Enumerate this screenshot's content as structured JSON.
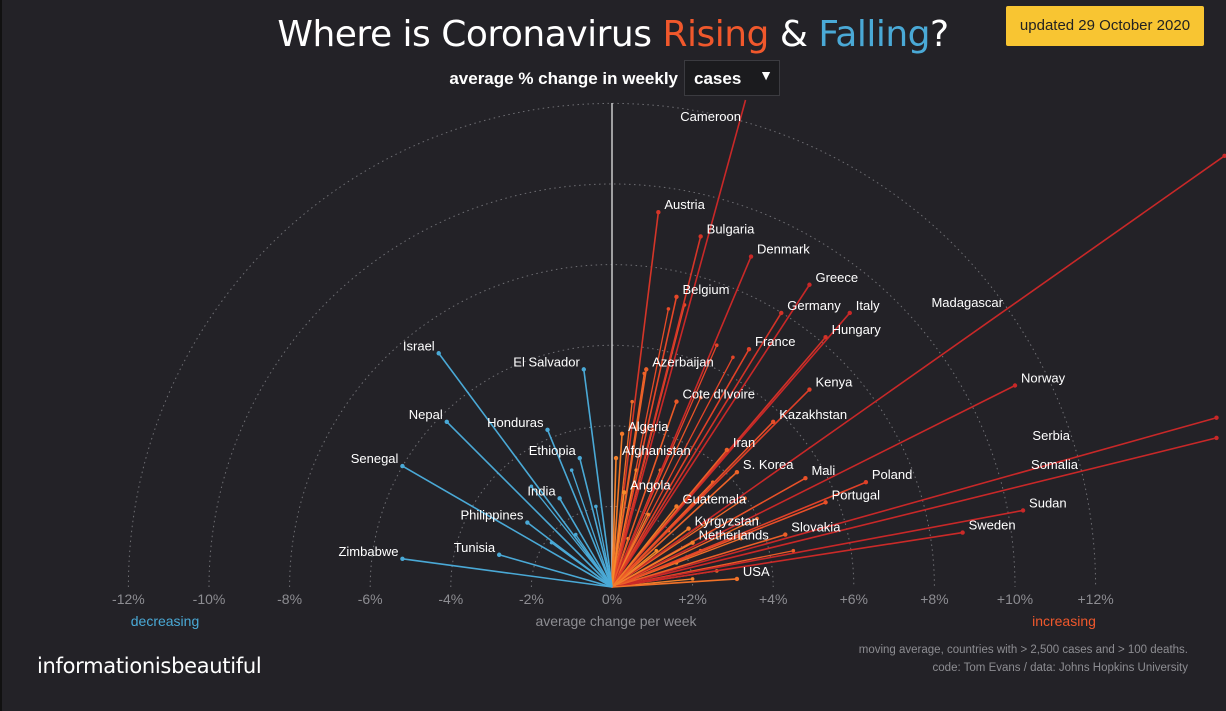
{
  "header": {
    "title_before": "Where is Coronavirus ",
    "title_rising": "Rising",
    "title_amp": " & ",
    "title_falling": "Falling",
    "title_end": "?",
    "updated": "updated 29 October 2020",
    "subtitle": "average % change in weekly",
    "metric_value": "cases",
    "metric_arrow": "▼"
  },
  "colors": {
    "background": "#232227",
    "rising": "#f0582c",
    "falling": "#4aa9d6",
    "badge": "#f8c532",
    "grid": "#6f6f74"
  },
  "chart_data": {
    "type": "radial-line",
    "x_label": "average change per week",
    "x_ticks": [
      "-12%",
      "-10%",
      "-8%",
      "-6%",
      "-4%",
      "-2%",
      "0%",
      "+2%",
      "+4%",
      "+6%",
      "+8%",
      "+10%",
      "+12%"
    ],
    "x_range": [
      -12,
      12
    ],
    "left_note": "decreasing",
    "right_note": "increasing",
    "grid": "dotted concentric semicircles every 2%",
    "points": [
      {
        "name": "Cameroon",
        "x": 3.4,
        "y": 12.4
      },
      {
        "name": "Austria",
        "x": 1.15,
        "y": 9.3
      },
      {
        "name": "Bulgaria",
        "x": 2.2,
        "y": 8.7
      },
      {
        "name": "Denmark",
        "x": 3.45,
        "y": 8.2
      },
      {
        "name": "Greece",
        "x": 4.9,
        "y": 7.5
      },
      {
        "name": "Germany",
        "x": 4.2,
        "y": 6.8
      },
      {
        "name": "Italy",
        "x": 5.9,
        "y": 6.8
      },
      {
        "name": "Belgium",
        "x": 1.6,
        "y": 7.2
      },
      {
        "name": "Hungary",
        "x": 5.3,
        "y": 6.2
      },
      {
        "name": "France",
        "x": 3.4,
        "y": 5.9
      },
      {
        "name": "Madagascar",
        "x": 15.2,
        "y": 10.7
      },
      {
        "name": "Azerbaijan",
        "x": 0.85,
        "y": 5.4
      },
      {
        "name": "Cote d'Ivoire",
        "x": 1.6,
        "y": 4.6
      },
      {
        "name": "Kenya",
        "x": 4.9,
        "y": 4.9
      },
      {
        "name": "Norway",
        "x": 10.0,
        "y": 5.0
      },
      {
        "name": "Kazakhstan",
        "x": 4.0,
        "y": 4.1
      },
      {
        "name": "Algeria",
        "x": 0.25,
        "y": 3.8
      },
      {
        "name": "Afghanistan",
        "x": 0.1,
        "y": 3.2
      },
      {
        "name": "Iran",
        "x": 2.85,
        "y": 3.4
      },
      {
        "name": "Serbia",
        "x": 15.0,
        "y": 4.2
      },
      {
        "name": "S. Korea",
        "x": 3.1,
        "y": 2.85
      },
      {
        "name": "Somalia",
        "x": 15.0,
        "y": 3.7
      },
      {
        "name": "Mali",
        "x": 4.8,
        "y": 2.7
      },
      {
        "name": "Poland",
        "x": 6.3,
        "y": 2.6
      },
      {
        "name": "Angola",
        "x": 0.3,
        "y": 2.35
      },
      {
        "name": "Guatemala",
        "x": 1.6,
        "y": 2.0
      },
      {
        "name": "Portugal",
        "x": 5.3,
        "y": 2.1
      },
      {
        "name": "Sudan",
        "x": 10.2,
        "y": 1.9
      },
      {
        "name": "Kyrgyzstan",
        "x": 1.9,
        "y": 1.45
      },
      {
        "name": "Slovakia",
        "x": 4.3,
        "y": 1.3
      },
      {
        "name": "Sweden",
        "x": 8.7,
        "y": 1.35
      },
      {
        "name": "Netherlands",
        "x": 2.0,
        "y": 1.1
      },
      {
        "name": "USA",
        "x": 3.1,
        "y": 0.2
      },
      {
        "name": "Israel",
        "x": -4.3,
        "y": 5.8
      },
      {
        "name": "El Salvador",
        "x": -0.7,
        "y": 5.4
      },
      {
        "name": "Nepal",
        "x": -4.1,
        "y": 4.1
      },
      {
        "name": "Honduras",
        "x": -1.6,
        "y": 3.9
      },
      {
        "name": "Ethiopia",
        "x": -0.8,
        "y": 3.2
      },
      {
        "name": "Senegal",
        "x": -5.2,
        "y": 3.0
      },
      {
        "name": "India",
        "x": -1.3,
        "y": 2.2
      },
      {
        "name": "Philippines",
        "x": -2.1,
        "y": 1.6
      },
      {
        "name": "Tunisia",
        "x": -2.8,
        "y": 0.8
      },
      {
        "name": "Zimbabwe",
        "x": -5.2,
        "y": 0.7
      }
    ],
    "extra_rays": [
      {
        "x": 0.5,
        "y": 4.6
      },
      {
        "x": 0.8,
        "y": 5.3
      },
      {
        "x": 1.4,
        "y": 6.9
      },
      {
        "x": 1.8,
        "y": 7.0
      },
      {
        "x": 2.6,
        "y": 6.0
      },
      {
        "x": 3.0,
        "y": 5.7
      },
      {
        "x": 2.2,
        "y": 4.7
      },
      {
        "x": 1.0,
        "y": 3.9
      },
      {
        "x": 0.6,
        "y": 2.9
      },
      {
        "x": 1.2,
        "y": 2.9
      },
      {
        "x": 2.5,
        "y": 2.6
      },
      {
        "x": 3.6,
        "y": 1.7
      },
      {
        "x": 1.4,
        "y": 1.4
      },
      {
        "x": 2.3,
        "y": 1.6
      },
      {
        "x": 4.5,
        "y": 0.9
      },
      {
        "x": 1.1,
        "y": 0.9
      },
      {
        "x": 2.6,
        "y": 0.4
      },
      {
        "x": 2.2,
        "y": 0.9
      },
      {
        "x": 1.6,
        "y": 0.6
      },
      {
        "x": 0.9,
        "y": 1.8
      },
      {
        "x": 0.4,
        "y": 1.2
      },
      {
        "x": 3.2,
        "y": 1.2
      },
      {
        "x": 2.0,
        "y": 0.2
      },
      {
        "x": 3.3,
        "y": 2.2
      },
      {
        "x": -0.4,
        "y": 2.0
      },
      {
        "x": -0.9,
        "y": 1.3
      },
      {
        "x": -1.5,
        "y": 1.1
      },
      {
        "x": -0.6,
        "y": 0.8
      },
      {
        "x": -2.0,
        "y": 2.5
      },
      {
        "x": -1.0,
        "y": 2.9
      }
    ]
  },
  "footer": {
    "brand": "informationisbeautiful",
    "note1": "moving average, countries with > 2,500 cases and > 100 deaths.",
    "note2": "code: Tom Evans / data: Johns Hopkins University"
  }
}
